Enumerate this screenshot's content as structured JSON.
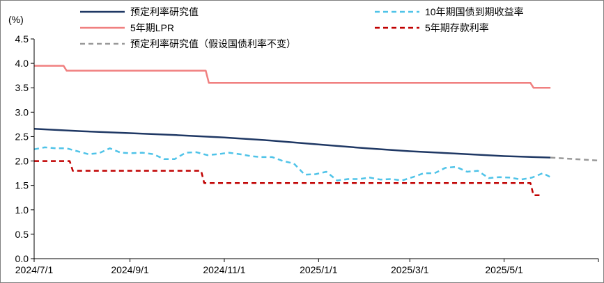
{
  "chart_data": {
    "type": "line",
    "ylabel": "(%)",
    "ylim": [
      0.0,
      4.5
    ],
    "yticks": [
      "0.0",
      "0.5",
      "1.0",
      "1.5",
      "2.0",
      "2.5",
      "3.0",
      "3.5",
      "4.0",
      "4.5"
    ],
    "xlim": [
      "2024-07-01",
      "2025-07-01"
    ],
    "xticks": [
      {
        "date": "2024-07-01",
        "label": "2024/7/1"
      },
      {
        "date": "2024-09-01",
        "label": "2024/9/1"
      },
      {
        "date": "2024-11-01",
        "label": "2024/11/1"
      },
      {
        "date": "2025-01-01",
        "label": "2025/1/1"
      },
      {
        "date": "2025-03-01",
        "label": "2025/3/1"
      },
      {
        "date": "2025-05-01",
        "label": "2025/5/1"
      }
    ],
    "grid": false,
    "legend_position": "top",
    "series": [
      {
        "name": "预定利率研究值",
        "color": "#1f3864",
        "style": "solid",
        "points": [
          [
            "2024-07-01",
            2.66
          ],
          [
            "2024-08-01",
            2.61
          ],
          [
            "2024-09-01",
            2.57
          ],
          [
            "2024-10-01",
            2.53
          ],
          [
            "2024-11-01",
            2.48
          ],
          [
            "2024-12-01",
            2.42
          ],
          [
            "2025-01-01",
            2.34
          ],
          [
            "2025-02-01",
            2.26
          ],
          [
            "2025-03-01",
            2.2
          ],
          [
            "2025-04-01",
            2.15
          ],
          [
            "2025-05-01",
            2.1
          ],
          [
            "2025-05-31",
            2.07
          ]
        ]
      },
      {
        "name": "5年期LPR",
        "color": "#f08080",
        "style": "solid",
        "points": [
          [
            "2024-07-01",
            3.95
          ],
          [
            "2024-07-20",
            3.95
          ],
          [
            "2024-07-22",
            3.85
          ],
          [
            "2024-10-20",
            3.85
          ],
          [
            "2024-10-22",
            3.6
          ],
          [
            "2025-05-18",
            3.6
          ],
          [
            "2025-05-20",
            3.5
          ],
          [
            "2025-05-31",
            3.5
          ]
        ]
      },
      {
        "name": "预定利率研究值（假设国债利率不变）",
        "color": "#999999",
        "style": "dashed",
        "points": [
          [
            "2025-05-31",
            2.07
          ],
          [
            "2025-07-01",
            2.01
          ]
        ]
      },
      {
        "name": "10年期国债到期收益率",
        "color": "#4fc3e8",
        "style": "dashed",
        "points": [
          [
            "2024-07-01",
            2.24
          ],
          [
            "2024-07-08",
            2.28
          ],
          [
            "2024-07-15",
            2.26
          ],
          [
            "2024-07-22",
            2.26
          ],
          [
            "2024-07-29",
            2.2
          ],
          [
            "2024-08-05",
            2.14
          ],
          [
            "2024-08-12",
            2.16
          ],
          [
            "2024-08-19",
            2.26
          ],
          [
            "2024-08-26",
            2.17
          ],
          [
            "2024-09-02",
            2.16
          ],
          [
            "2024-09-09",
            2.17
          ],
          [
            "2024-09-16",
            2.14
          ],
          [
            "2024-09-23",
            2.04
          ],
          [
            "2024-09-30",
            2.04
          ],
          [
            "2024-10-07",
            2.17
          ],
          [
            "2024-10-14",
            2.18
          ],
          [
            "2024-10-21",
            2.12
          ],
          [
            "2024-10-28",
            2.14
          ],
          [
            "2024-11-04",
            2.17
          ],
          [
            "2024-11-11",
            2.14
          ],
          [
            "2024-11-18",
            2.1
          ],
          [
            "2024-11-25",
            2.08
          ],
          [
            "2024-12-02",
            2.08
          ],
          [
            "2024-12-09",
            2.0
          ],
          [
            "2024-12-16",
            1.95
          ],
          [
            "2024-12-23",
            1.72
          ],
          [
            "2024-12-30",
            1.73
          ],
          [
            "2025-01-06",
            1.78
          ],
          [
            "2025-01-13",
            1.6
          ],
          [
            "2025-01-20",
            1.63
          ],
          [
            "2025-01-27",
            1.63
          ],
          [
            "2025-02-03",
            1.66
          ],
          [
            "2025-02-10",
            1.62
          ],
          [
            "2025-02-17",
            1.63
          ],
          [
            "2025-02-24",
            1.6
          ],
          [
            "2025-03-03",
            1.67
          ],
          [
            "2025-03-10",
            1.75
          ],
          [
            "2025-03-17",
            1.75
          ],
          [
            "2025-03-24",
            1.86
          ],
          [
            "2025-03-31",
            1.88
          ],
          [
            "2025-04-07",
            1.78
          ],
          [
            "2025-04-14",
            1.8
          ],
          [
            "2025-04-21",
            1.65
          ],
          [
            "2025-04-28",
            1.67
          ],
          [
            "2025-05-05",
            1.66
          ],
          [
            "2025-05-12",
            1.62
          ],
          [
            "2025-05-19",
            1.66
          ],
          [
            "2025-05-26",
            1.75
          ],
          [
            "2025-05-31",
            1.67
          ]
        ]
      },
      {
        "name": "5年期存款利率",
        "color": "#c00000",
        "style": "dashed",
        "points": [
          [
            "2024-07-01",
            2.0
          ],
          [
            "2024-07-24",
            2.0
          ],
          [
            "2024-07-26",
            1.8
          ],
          [
            "2024-10-17",
            1.8
          ],
          [
            "2024-10-19",
            1.55
          ],
          [
            "2025-05-18",
            1.55
          ],
          [
            "2025-05-20",
            1.3
          ],
          [
            "2025-05-24",
            1.3
          ]
        ]
      }
    ],
    "legend_rows": [
      [
        "预定利率研究值",
        "10年期国债到期收益率"
      ],
      [
        "5年期LPR",
        "5年期存款利率"
      ],
      [
        "预定利率研究值（假设国债利率不变）"
      ]
    ]
  }
}
